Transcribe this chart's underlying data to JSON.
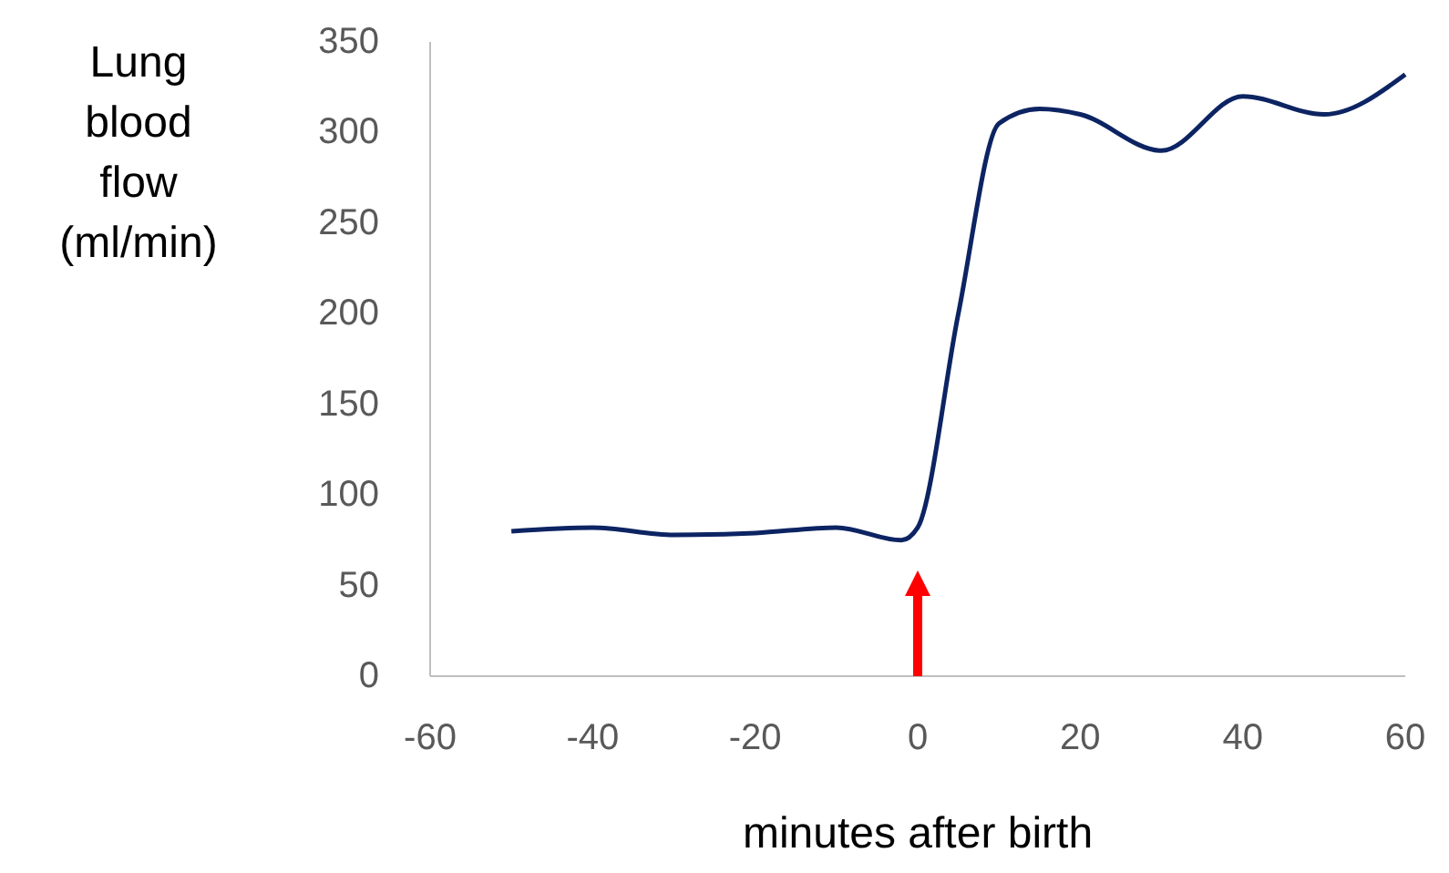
{
  "chart_data": {
    "type": "line",
    "xlabel": "minutes after birth",
    "ylabel": "Lung blood flow (ml/min)",
    "x": [
      -50,
      -40,
      -30,
      -20,
      -10,
      -2,
      0,
      5,
      10,
      15,
      20,
      30,
      40,
      50,
      60
    ],
    "series": [
      {
        "color": "#0d2463",
        "values": [
          80,
          82,
          78,
          79,
          82,
          75,
          82,
          200,
          305,
          313,
          310,
          290,
          320,
          310,
          332
        ]
      }
    ],
    "xlim": [
      -60,
      60
    ],
    "xticks": [
      -60,
      -40,
      -20,
      0,
      20,
      40,
      60
    ],
    "ylim": [
      0,
      350
    ],
    "yticks": [
      0,
      50,
      100,
      150,
      200,
      250,
      300,
      350
    ],
    "grid": false,
    "marker": "none",
    "line_style": "solid"
  }
}
